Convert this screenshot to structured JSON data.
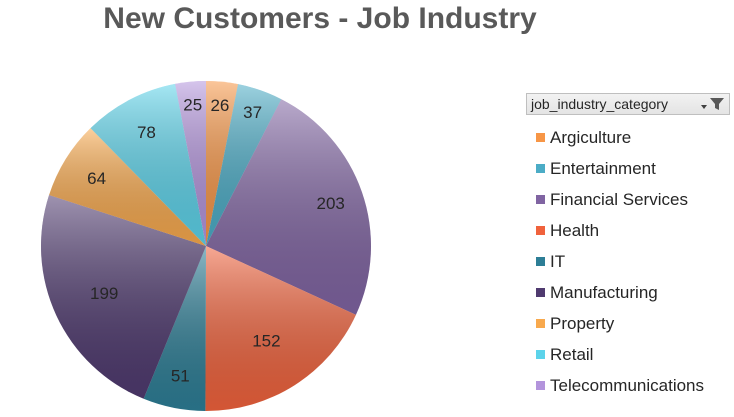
{
  "chart_data": {
    "type": "pie",
    "title": "New Customers - Job Industry",
    "legend_title": "job_industry_category",
    "legend_position": "right",
    "categories": [
      "Argiculture",
      "Entertainment",
      "Financial Services",
      "Health",
      "IT",
      "Manufacturing",
      "Property",
      "Retail",
      "Telecommunications"
    ],
    "values": [
      26,
      37,
      203,
      152,
      51,
      199,
      64,
      78,
      25
    ],
    "colors": [
      "#f79646",
      "#4bacc6",
      "#8064a2",
      "#f0623c",
      "#2d7e96",
      "#4f3a6f",
      "#f8a94d",
      "#5cd3ea",
      "#b394dc"
    ]
  },
  "icons": {
    "filter": "filter-icon",
    "dropdown": "chevron-down-icon"
  }
}
